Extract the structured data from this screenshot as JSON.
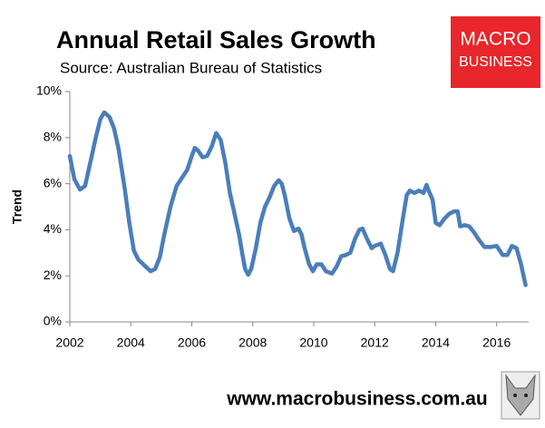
{
  "chart_data": {
    "type": "line",
    "title": "Annual Retail Sales Growth",
    "subtitle": "Source: Australian Bureau of Statistics",
    "y_label": "Trend",
    "logo": [
      "MACRO",
      "BUSINESS"
    ],
    "footer": "www.macrobusiness.com.au",
    "xlim": [
      2002,
      2017.05
    ],
    "xticks": [
      2002,
      2004,
      2006,
      2008,
      2010,
      2012,
      2014,
      2016
    ],
    "ylim": [
      0,
      10
    ],
    "yticks": [
      {
        "value": 0,
        "label": "0%"
      },
      {
        "value": 2,
        "label": "2%"
      },
      {
        "value": 4,
        "label": "4%"
      },
      {
        "value": 6,
        "label": "6%"
      },
      {
        "value": 8,
        "label": "8%"
      },
      {
        "value": 10,
        "label": "10%"
      }
    ],
    "grid": false,
    "series": [
      {
        "name": "Trend",
        "color": "#4a7ebb",
        "x": [
          2002.0,
          2002.15,
          2002.33,
          2002.5,
          2002.65,
          2002.85,
          2003.0,
          2003.13,
          2003.3,
          2003.45,
          2003.6,
          2003.8,
          2003.95,
          2004.1,
          2004.25,
          2004.45,
          2004.65,
          2004.8,
          2004.95,
          2005.1,
          2005.3,
          2005.5,
          2005.7,
          2005.85,
          2006.0,
          2006.1,
          2006.2,
          2006.35,
          2006.5,
          2006.65,
          2006.8,
          2006.95,
          2007.1,
          2007.25,
          2007.4,
          2007.55,
          2007.65,
          2007.75,
          2007.85,
          2007.95,
          2008.1,
          2008.25,
          2008.4,
          2008.55,
          2008.7,
          2008.85,
          2008.95,
          2009.05,
          2009.2,
          2009.35,
          2009.5,
          2009.6,
          2009.7,
          2009.85,
          2009.97,
          2010.1,
          2010.25,
          2010.4,
          2010.6,
          2010.75,
          2010.9,
          2011.05,
          2011.2,
          2011.35,
          2011.5,
          2011.6,
          2011.75,
          2011.9,
          2012.0,
          2012.2,
          2012.35,
          2012.5,
          2012.6,
          2012.75,
          2012.9,
          2013.05,
          2013.15,
          2013.3,
          2013.45,
          2013.6,
          2013.7,
          2013.77,
          2013.9,
          2014.0,
          2014.13,
          2014.3,
          2014.45,
          2014.6,
          2014.72,
          2014.8,
          2014.95,
          2015.1,
          2015.25,
          2015.4,
          2015.6,
          2015.8,
          2016.0,
          2016.2,
          2016.35,
          2016.5,
          2016.65,
          2016.8,
          2016.95
        ],
        "values": [
          7.2,
          6.2,
          5.75,
          5.9,
          6.8,
          8.0,
          8.8,
          9.1,
          8.9,
          8.4,
          7.5,
          5.8,
          4.3,
          3.1,
          2.7,
          2.45,
          2.2,
          2.3,
          2.8,
          3.8,
          5.0,
          5.9,
          6.3,
          6.6,
          7.2,
          7.55,
          7.45,
          7.15,
          7.2,
          7.6,
          8.2,
          7.9,
          6.9,
          5.6,
          4.7,
          3.8,
          3.0,
          2.3,
          2.05,
          2.3,
          3.2,
          4.3,
          5.0,
          5.4,
          5.9,
          6.15,
          6.0,
          5.5,
          4.5,
          3.95,
          4.05,
          3.8,
          3.2,
          2.5,
          2.2,
          2.5,
          2.5,
          2.2,
          2.1,
          2.4,
          2.85,
          2.9,
          3.0,
          3.6,
          4.0,
          4.05,
          3.6,
          3.2,
          3.3,
          3.4,
          2.9,
          2.3,
          2.2,
          3.0,
          4.3,
          5.5,
          5.7,
          5.6,
          5.7,
          5.6,
          5.95,
          5.7,
          5.3,
          4.3,
          4.2,
          4.5,
          4.7,
          4.8,
          4.8,
          4.15,
          4.2,
          4.15,
          3.9,
          3.6,
          3.25,
          3.25,
          3.3,
          2.9,
          2.9,
          3.3,
          3.2,
          2.5,
          1.6
        ]
      }
    ]
  }
}
